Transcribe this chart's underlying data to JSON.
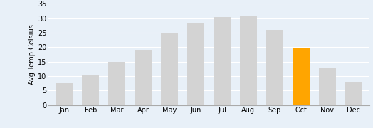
{
  "categories": [
    "Jan",
    "Feb",
    "Mar",
    "Apr",
    "May",
    "Jun",
    "Jul",
    "Aug",
    "Sep",
    "Oct",
    "Nov",
    "Dec"
  ],
  "values": [
    7.5,
    10.5,
    15,
    19,
    25,
    28.5,
    30.5,
    31,
    26,
    19.5,
    13,
    8
  ],
  "bar_colors": [
    "#d3d3d3",
    "#d3d3d3",
    "#d3d3d3",
    "#d3d3d3",
    "#d3d3d3",
    "#d3d3d3",
    "#d3d3d3",
    "#d3d3d3",
    "#d3d3d3",
    "#FFA500",
    "#d3d3d3",
    "#d3d3d3"
  ],
  "ylabel": "Avg Temp Celsius",
  "ylim": [
    0,
    35
  ],
  "yticks": [
    0,
    5,
    10,
    15,
    20,
    25,
    30,
    35
  ],
  "background_color": "#e8f0f8",
  "plot_area_color": "#e8f0f8",
  "bar_edge_color": "none",
  "grid_color": "#ffffff",
  "ylabel_fontsize": 7,
  "tick_fontsize": 7,
  "bar_width": 0.65
}
